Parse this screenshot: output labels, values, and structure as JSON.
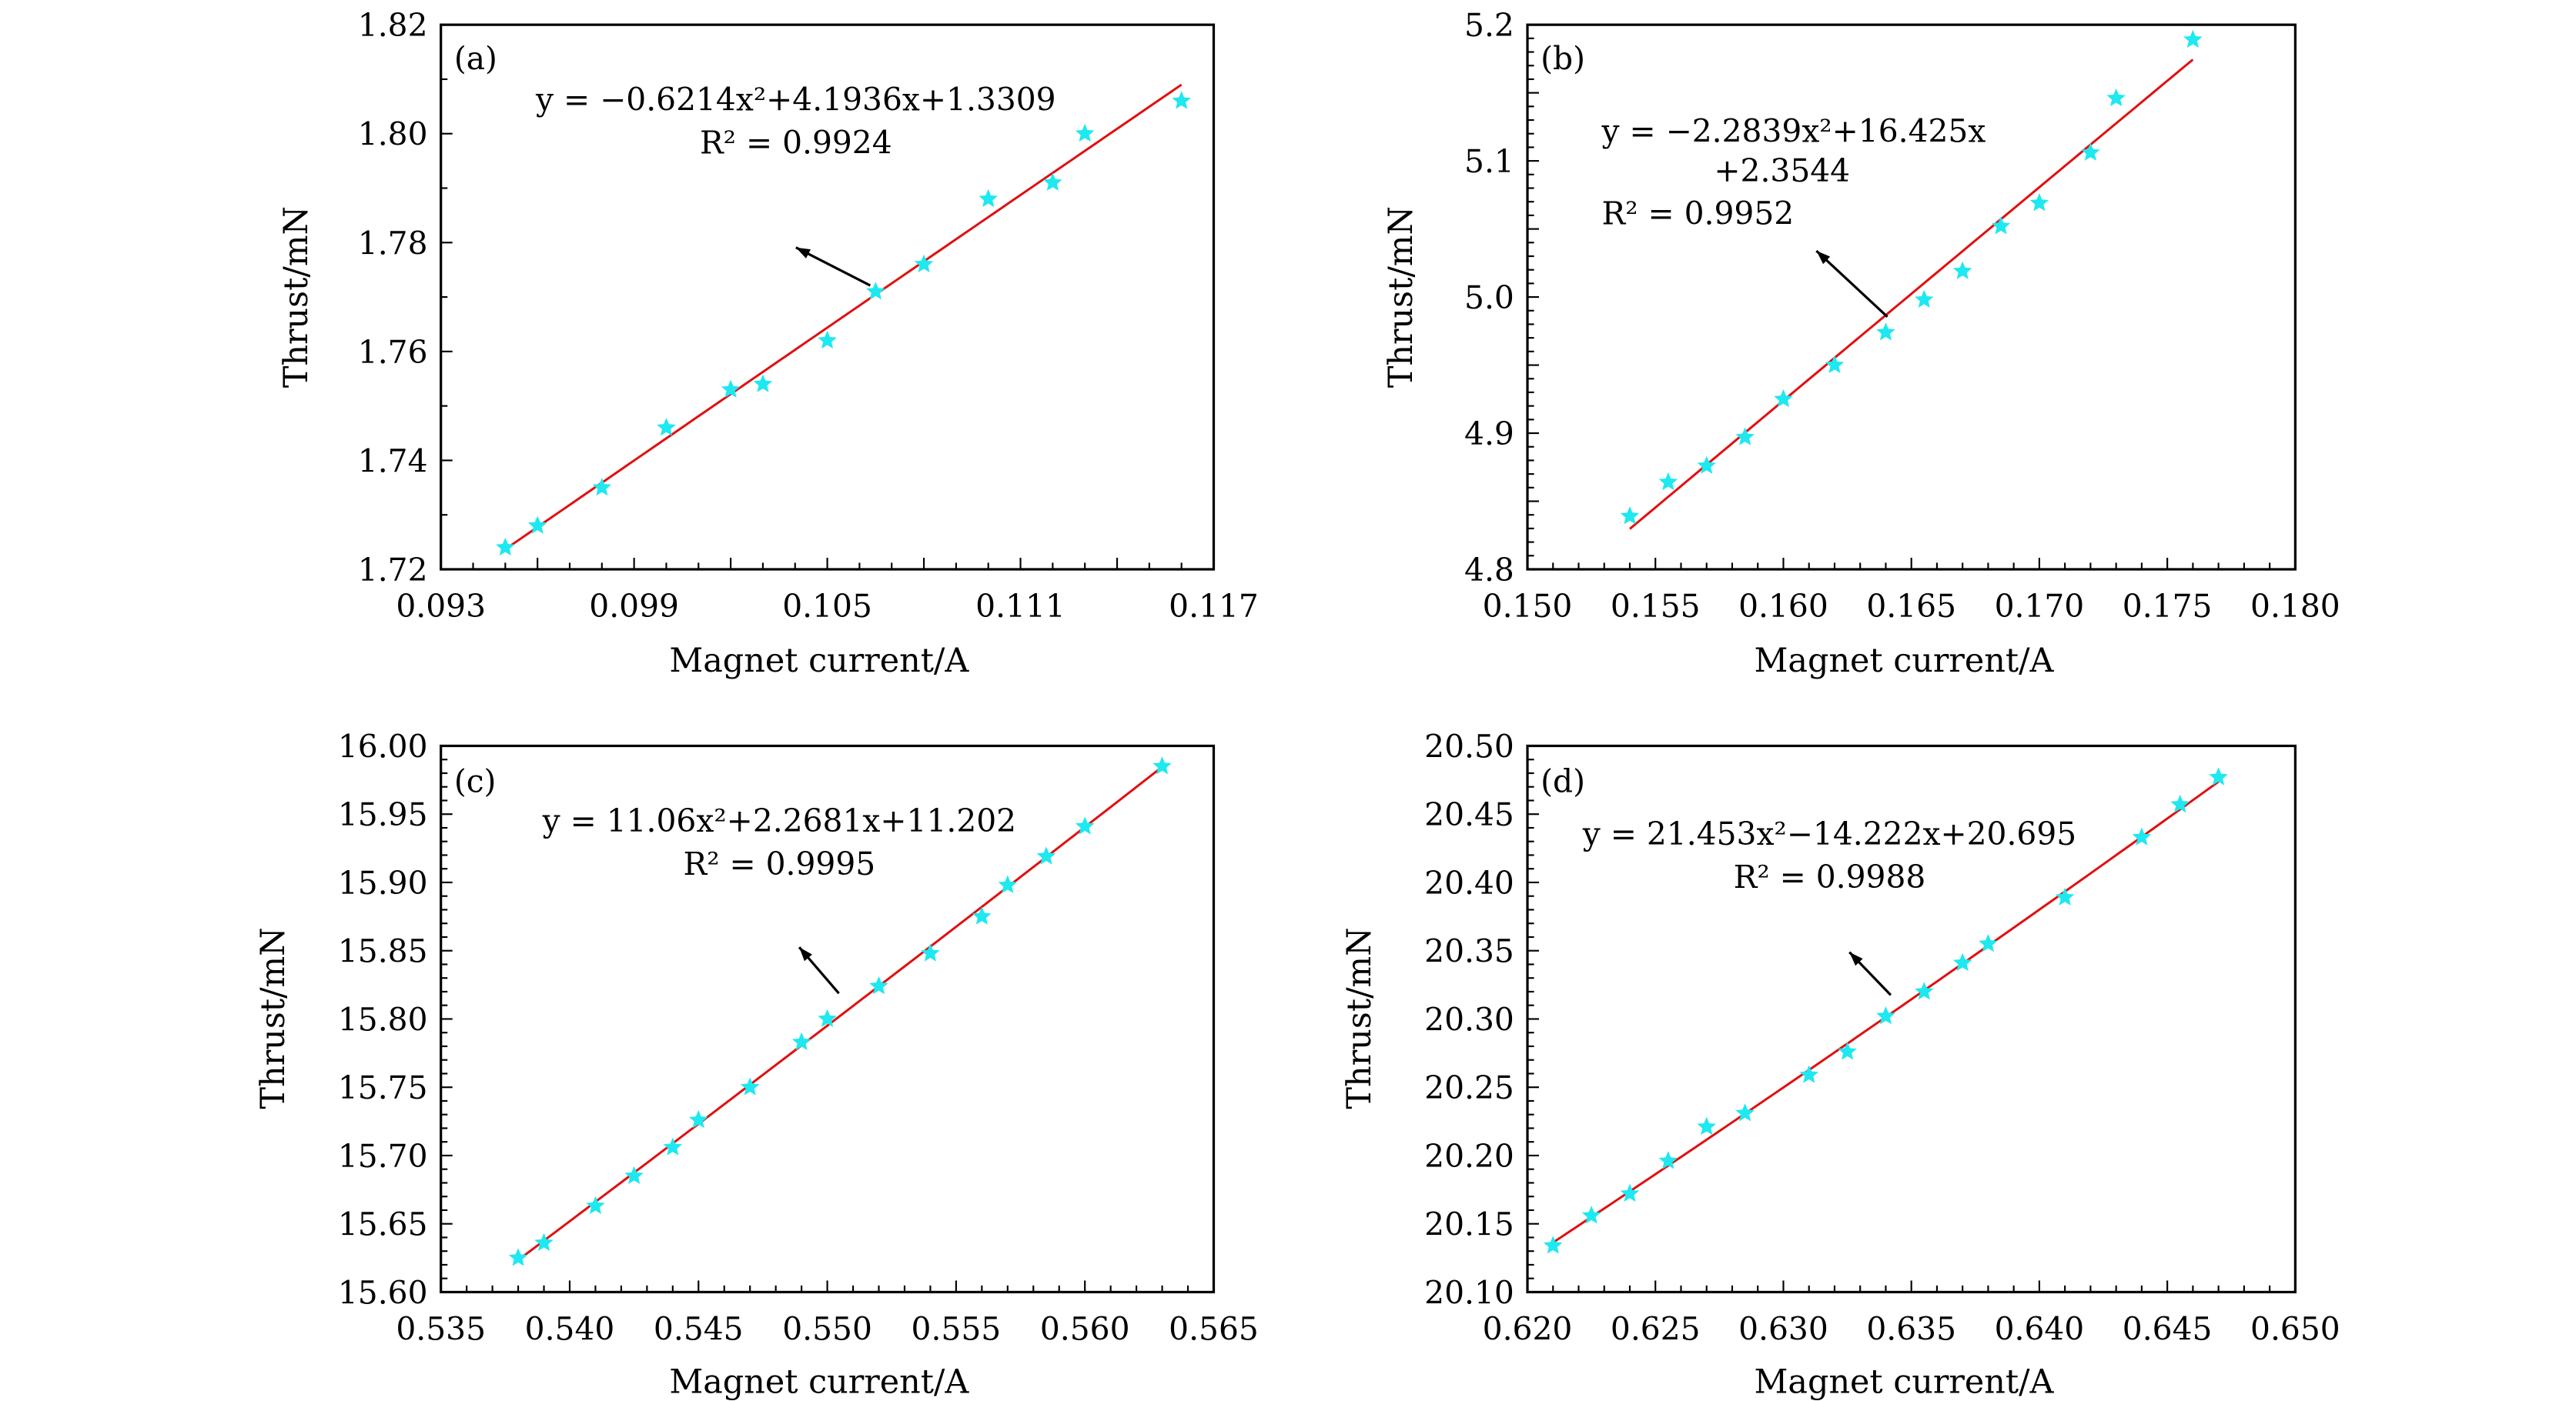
{
  "chart_data": [
    {
      "type": "scatter",
      "panel_label": "(a)",
      "xlabel": "Magnet current/A",
      "ylabel": "Thrust/mN",
      "xlim": [
        0.093,
        0.117
      ],
      "ylim": [
        1.72,
        1.82
      ],
      "xticks": [
        "0.093",
        "0.099",
        "0.105",
        "0.111",
        "0.117"
      ],
      "yticks": [
        "1.72",
        "1.74",
        "1.76",
        "1.78",
        "1.80",
        "1.82"
      ],
      "x": [
        0.095,
        0.096,
        0.098,
        0.1,
        0.102,
        0.103,
        0.105,
        0.1065,
        0.108,
        0.11,
        0.112,
        0.113,
        0.116
      ],
      "y": [
        1.724,
        1.728,
        1.735,
        1.746,
        1.753,
        1.754,
        1.762,
        1.771,
        1.776,
        1.788,
        1.791,
        1.8,
        1.806
      ],
      "fit": {
        "coefficients": [
          -0.6214,
          4.1936,
          1.3309
        ],
        "equation": [
          "y = −0.6214x²+4.1936x+1.3309",
          "R² = 0.9924"
        ]
      },
      "marker_color": "#1ee8f0",
      "fit_color": "#e01010"
    },
    {
      "type": "scatter",
      "panel_label": "(b)",
      "xlabel": "Magnet current/A",
      "ylabel": "Thrust/mN",
      "xlim": [
        0.15,
        0.18
      ],
      "ylim": [
        4.8,
        5.2
      ],
      "xticks": [
        "0.150",
        "0.155",
        "0.160",
        "0.165",
        "0.170",
        "0.175",
        "0.180"
      ],
      "yticks": [
        "4.8",
        "4.9",
        "5.0",
        "5.1",
        "5.2"
      ],
      "x": [
        0.154,
        0.1555,
        0.157,
        0.1585,
        0.16,
        0.162,
        0.164,
        0.1655,
        0.167,
        0.1685,
        0.17,
        0.172,
        0.173,
        0.176
      ],
      "y": [
        4.839,
        4.864,
        4.876,
        4.897,
        4.925,
        4.95,
        4.974,
        4.998,
        5.019,
        5.052,
        5.069,
        5.106,
        5.146,
        5.189
      ],
      "fit": {
        "coefficients": [
          -2.2839,
          16.425,
          2.3544
        ],
        "equation": [
          "y = −2.2839x²+16.425x",
          "+2.3544",
          "R² = 0.9952"
        ]
      },
      "marker_color": "#1ee8f0",
      "fit_color": "#e01010"
    },
    {
      "type": "scatter",
      "panel_label": "(c)",
      "xlabel": "Magnet current/A",
      "ylabel": "Thrust/mN",
      "xlim": [
        0.535,
        0.565
      ],
      "ylim": [
        15.6,
        16.0
      ],
      "xticks": [
        "0.535",
        "0.540",
        "0.545",
        "0.550",
        "0.555",
        "0.560",
        "0.565"
      ],
      "yticks": [
        "15.60",
        "15.65",
        "15.70",
        "15.75",
        "15.80",
        "15.85",
        "15.90",
        "15.95",
        "16.00"
      ],
      "x": [
        0.538,
        0.539,
        0.541,
        0.5425,
        0.544,
        0.545,
        0.547,
        0.549,
        0.55,
        0.552,
        0.554,
        0.556,
        0.557,
        0.5585,
        0.56,
        0.563
      ],
      "y": [
        15.625,
        15.636,
        15.663,
        15.685,
        15.706,
        15.726,
        15.75,
        15.783,
        15.8,
        15.824,
        15.848,
        15.875,
        15.898,
        15.919,
        15.941,
        15.985
      ],
      "fit": {
        "coefficients": [
          11.06,
          2.2681,
          11.202
        ],
        "equation": [
          "y = 11.06x²+2.2681x+11.202",
          "R² = 0.9995"
        ]
      },
      "marker_color": "#1ee8f0",
      "fit_color": "#e01010"
    },
    {
      "type": "scatter",
      "panel_label": "(d)",
      "xlabel": "Magnet current/A",
      "ylabel": "Thrust/mN",
      "xlim": [
        0.62,
        0.65
      ],
      "ylim": [
        20.1,
        20.5
      ],
      "xticks": [
        "0.620",
        "0.625",
        "0.630",
        "0.635",
        "0.640",
        "0.645",
        "0.650"
      ],
      "yticks": [
        "20.10",
        "20.15",
        "20.20",
        "20.25",
        "20.30",
        "20.35",
        "20.40",
        "20.45",
        "20.50"
      ],
      "x": [
        0.621,
        0.6225,
        0.624,
        0.6255,
        0.627,
        0.6285,
        0.631,
        0.6325,
        0.634,
        0.6355,
        0.637,
        0.638,
        0.641,
        0.644,
        0.6455,
        0.647
      ],
      "y": [
        20.134,
        20.156,
        20.172,
        20.196,
        20.221,
        20.231,
        20.259,
        20.276,
        20.302,
        20.32,
        20.341,
        20.355,
        20.389,
        20.433,
        20.457,
        20.477
      ],
      "fit": {
        "coefficients": [
          21.453,
          -14.222,
          20.695
        ],
        "equation": [
          "y = 21.453x²−14.222x+20.695",
          "R² = 0.9988"
        ]
      },
      "marker_color": "#1ee8f0",
      "fit_color": "#e01010"
    }
  ]
}
